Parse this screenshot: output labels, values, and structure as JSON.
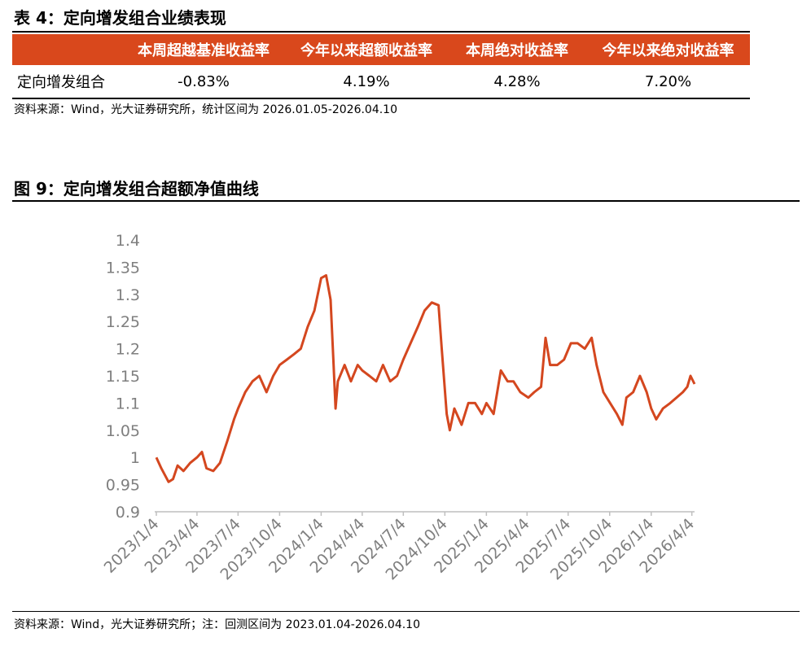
{
  "header": {
    "title": "表 4：定向增发组合业绩表现"
  },
  "table": {
    "header": [
      "本周超越基准收益率",
      "今年以来超额收益率",
      "本周绝对收益率",
      "今年以来绝对收益率"
    ],
    "rows": [
      [
        "定向增发组合",
        "-0.83%",
        "4.19%",
        "4.28%",
        "7.20%"
      ]
    ],
    "source": "资料来源：Wind，光大证券研究所，统计区间为 2026.01.05-2026.04.10"
  },
  "chart_data": {
    "type": "line",
    "title": "图 9：定向增发组合超额净值曲线",
    "source": "资料来源：Wind，光大证券研究所；注：回测区间为 2023.01.04-2026.04.10",
    "x": [
      "2023/1/4",
      "2023/1/15",
      "2023/1/31",
      "2023/2/10",
      "2023/2/20",
      "2023/3/5",
      "2023/3/20",
      "2023/4/4",
      "2023/4/15",
      "2023/4/25",
      "2023/5/10",
      "2023/5/25",
      "2023/6/10",
      "2023/6/25",
      "2023/7/4",
      "2023/7/20",
      "2023/8/5",
      "2023/8/20",
      "2023/9/5",
      "2023/9/20",
      "2023/10/4",
      "2023/10/20",
      "2023/11/5",
      "2023/11/20",
      "2023/12/5",
      "2023/12/20",
      "2024/1/4",
      "2024/1/15",
      "2024/1/25",
      "2024/1/31",
      "2024/2/5",
      "2024/2/10",
      "2024/2/25",
      "2024/3/10",
      "2024/3/25",
      "2024/4/4",
      "2024/4/20",
      "2024/5/5",
      "2024/5/20",
      "2024/6/5",
      "2024/6/20",
      "2024/7/4",
      "2024/7/20",
      "2024/8/5",
      "2024/8/20",
      "2024/9/5",
      "2024/9/20",
      "2024/9/27",
      "2024/10/8",
      "2024/10/15",
      "2024/10/25",
      "2024/11/10",
      "2024/11/25",
      "2024/12/10",
      "2024/12/25",
      "2025/1/4",
      "2025/1/20",
      "2025/2/5",
      "2025/2/20",
      "2025/3/5",
      "2025/3/20",
      "2025/4/7",
      "2025/4/20",
      "2025/5/5",
      "2025/5/15",
      "2025/5/25",
      "2025/6/10",
      "2025/6/25",
      "2025/7/10",
      "2025/7/25",
      "2025/8/10",
      "2025/8/25",
      "2025/9/5",
      "2025/9/20",
      "2025/10/5",
      "2025/10/20",
      "2025/11/1",
      "2025/11/10",
      "2025/11/25",
      "2025/12/10",
      "2025/12/25",
      "2026/1/4",
      "2026/1/15",
      "2026/1/30",
      "2026/2/15",
      "2026/3/1",
      "2026/3/15",
      "2026/3/25",
      "2026/4/1",
      "2026/4/10"
    ],
    "series": [
      {
        "color": "#d4471f",
        "values": [
          1.0,
          0.98,
          0.955,
          0.96,
          0.985,
          0.975,
          0.99,
          1.0,
          1.01,
          0.98,
          0.975,
          0.99,
          1.03,
          1.07,
          1.09,
          1.12,
          1.14,
          1.15,
          1.12,
          1.15,
          1.17,
          1.18,
          1.19,
          1.2,
          1.24,
          1.27,
          1.33,
          1.335,
          1.29,
          1.18,
          1.09,
          1.14,
          1.17,
          1.14,
          1.17,
          1.16,
          1.15,
          1.14,
          1.17,
          1.14,
          1.15,
          1.18,
          1.21,
          1.24,
          1.27,
          1.285,
          1.28,
          1.2,
          1.08,
          1.05,
          1.09,
          1.06,
          1.1,
          1.1,
          1.08,
          1.1,
          1.08,
          1.16,
          1.14,
          1.14,
          1.12,
          1.11,
          1.12,
          1.13,
          1.22,
          1.17,
          1.17,
          1.18,
          1.21,
          1.21,
          1.2,
          1.22,
          1.17,
          1.12,
          1.1,
          1.08,
          1.06,
          1.11,
          1.12,
          1.15,
          1.12,
          1.09,
          1.07,
          1.09,
          1.1,
          1.11,
          1.12,
          1.13,
          1.15,
          1.135
        ]
      }
    ],
    "xlim": [
      "2023/1/4",
      "2026/4/10"
    ],
    "xticks": [
      "2023/1/4",
      "2023/4/4",
      "2023/7/4",
      "2023/10/4",
      "2024/1/4",
      "2024/4/4",
      "2024/7/4",
      "2024/10/4",
      "2025/1/4",
      "2025/4/4",
      "2025/7/4",
      "2025/10/4",
      "2026/1/4",
      "2026/4/4"
    ],
    "ylim": [
      0.9,
      1.4
    ],
    "yticks": [
      0.9,
      0.95,
      1,
      1.05,
      1.1,
      1.15,
      1.2,
      1.25,
      1.3,
      1.35,
      1.4
    ]
  }
}
